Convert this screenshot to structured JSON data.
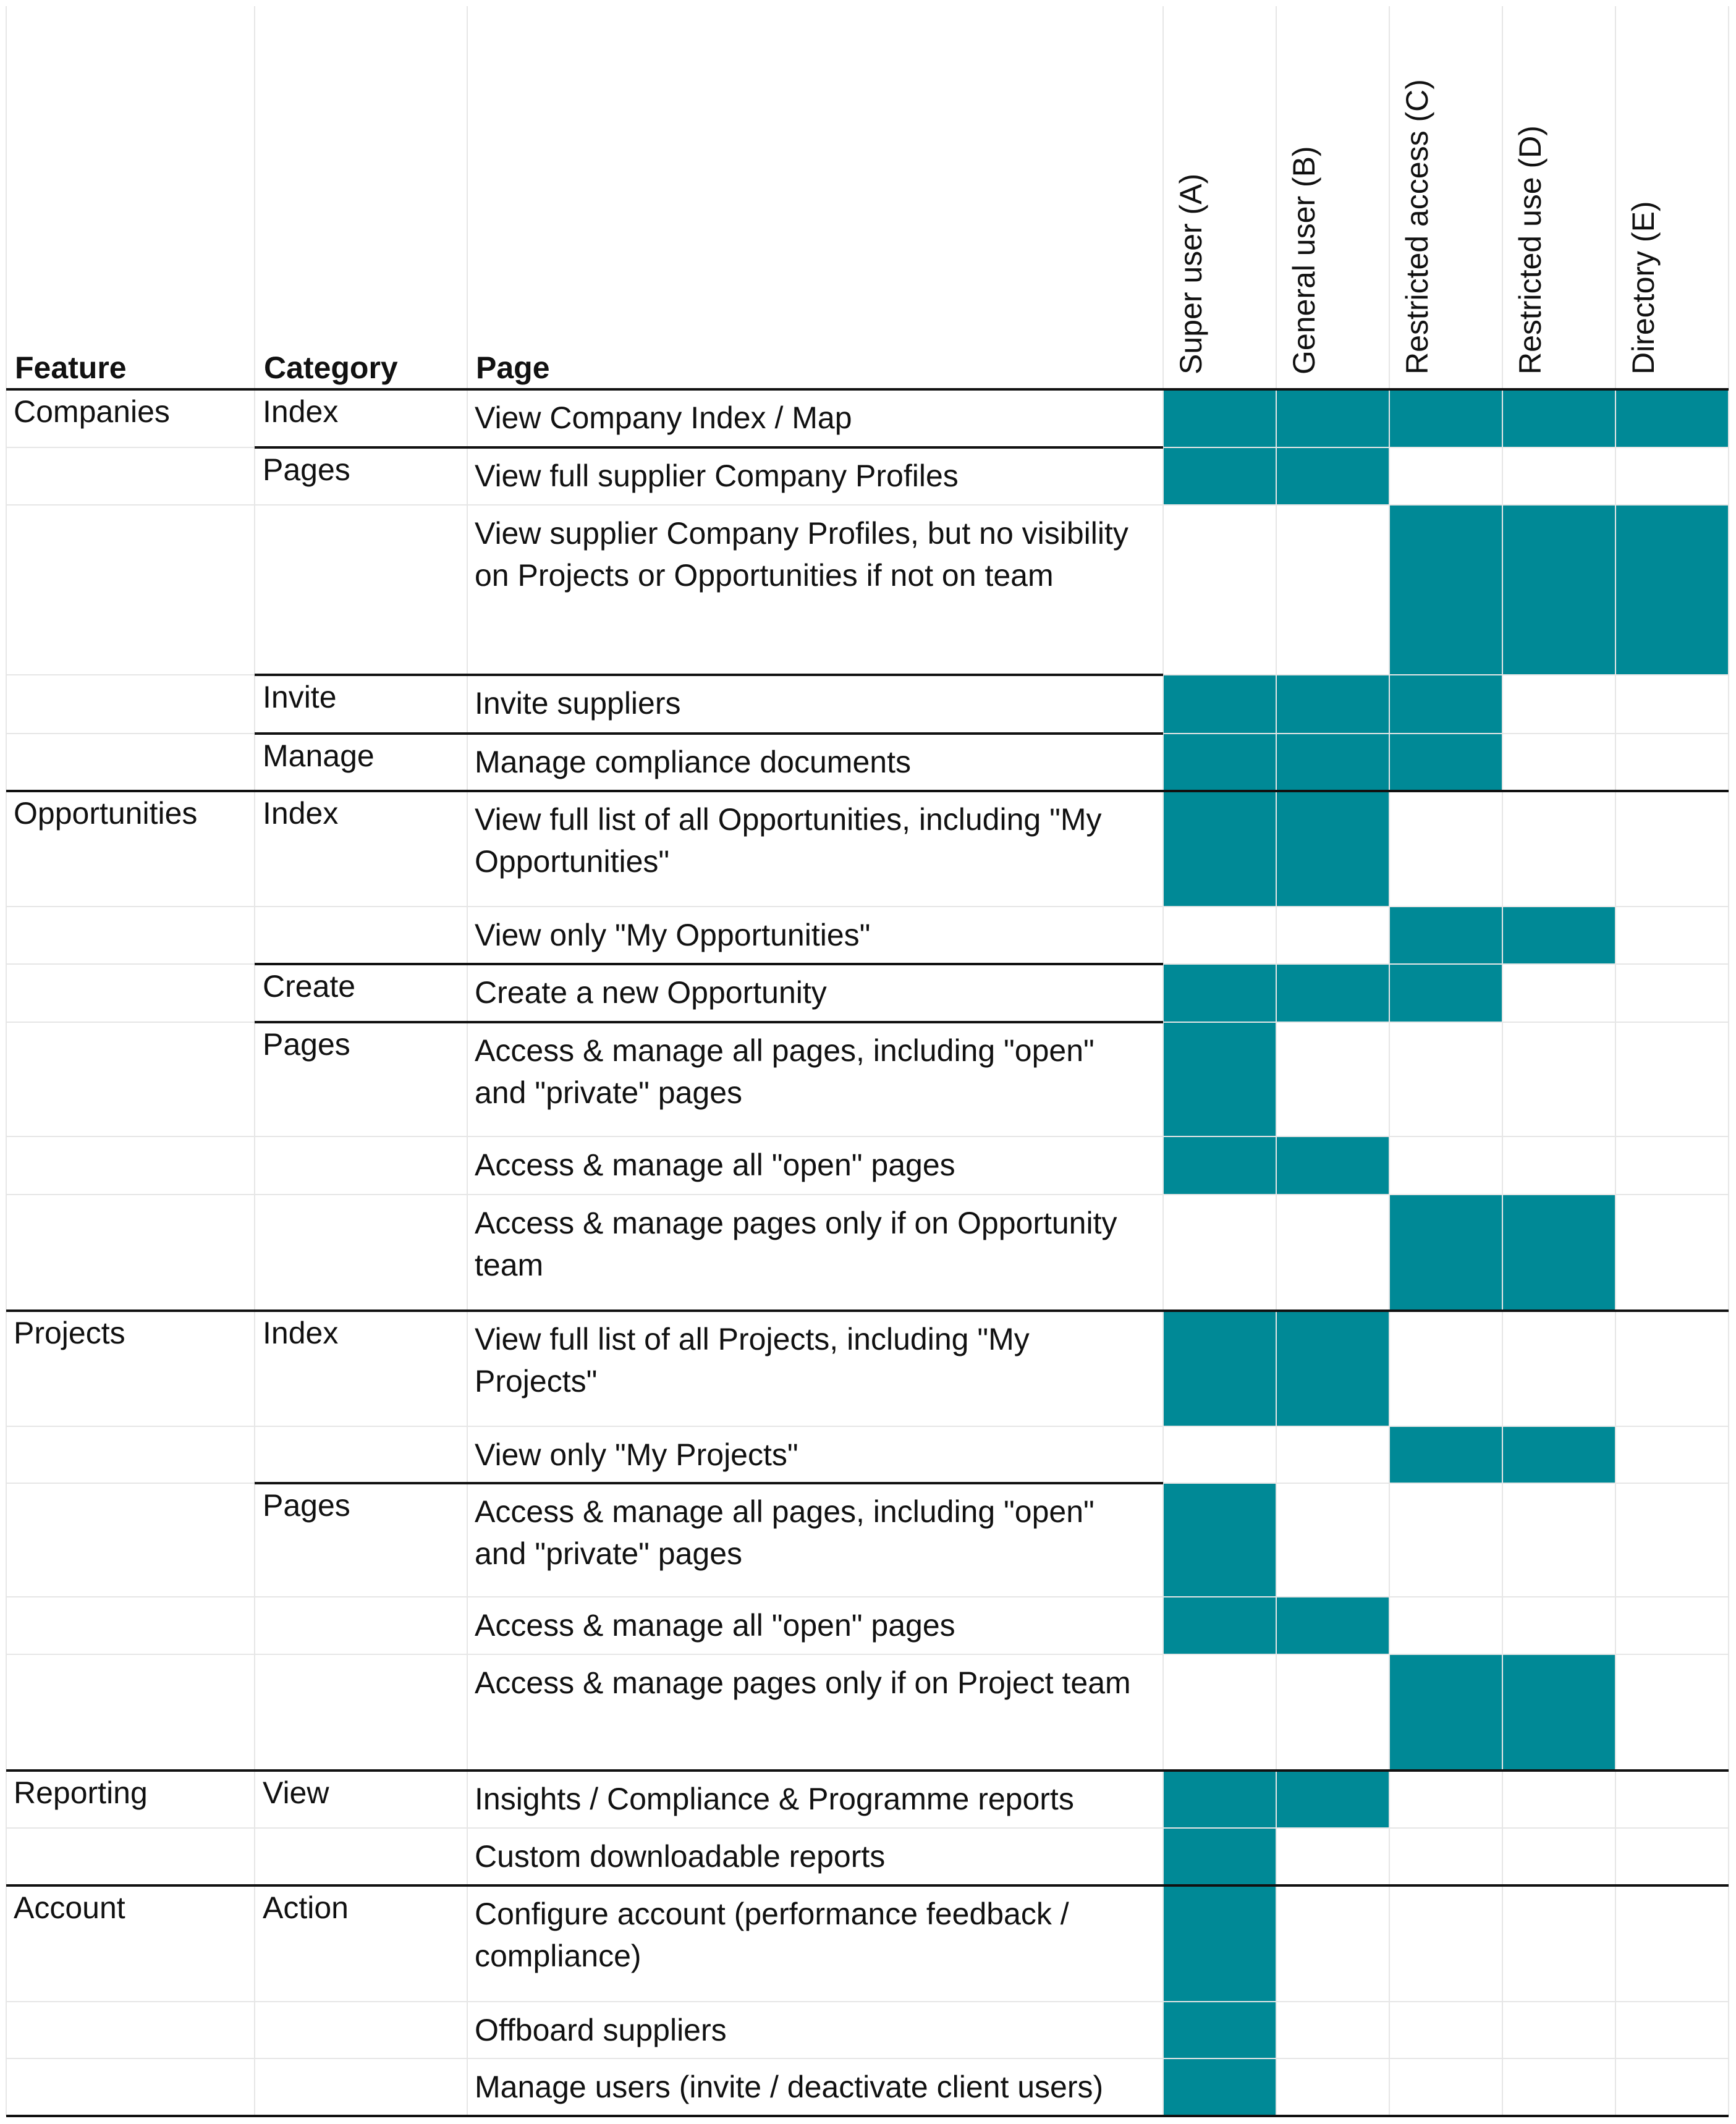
{
  "colors": {
    "filled": "#008996",
    "grid": "#e6e6e6",
    "rule": "#111111"
  },
  "headers": {
    "feature": "Feature",
    "category": "Category",
    "page": "Page",
    "roles": [
      "Super user (A)",
      "General user (B)",
      "Restricted access (C)",
      "Restricted use (D)",
      "Directory (E)"
    ]
  },
  "rows": [
    {
      "feature": "Companies",
      "category": "Index",
      "page": "View Company Index / Map",
      "access": [
        1,
        1,
        1,
        1,
        1
      ]
    },
    {
      "feature": "",
      "category": "Pages",
      "page": "View full supplier Company Profiles",
      "access": [
        1,
        1,
        0,
        0,
        0
      ]
    },
    {
      "feature": "",
      "category": "",
      "page": "View supplier Company Profiles, but no visibility on Projects or Opportunities if not on team",
      "access": [
        0,
        0,
        1,
        1,
        1
      ]
    },
    {
      "feature": "",
      "category": "Invite",
      "page": "Invite suppliers",
      "access": [
        1,
        1,
        1,
        0,
        0
      ]
    },
    {
      "feature": "",
      "category": "Manage",
      "page": "Manage compliance documents",
      "access": [
        1,
        1,
        1,
        0,
        0
      ]
    },
    {
      "feature": "Opportunities",
      "category": "Index",
      "page": "View full list of all Opportunities, including \"My Opportunities\"",
      "access": [
        1,
        1,
        0,
        0,
        0
      ]
    },
    {
      "feature": "",
      "category": "",
      "page": "View only \"My Opportunities\"",
      "access": [
        0,
        0,
        1,
        1,
        0
      ]
    },
    {
      "feature": "",
      "category": "Create",
      "page": "Create a new Opportunity",
      "access": [
        1,
        1,
        1,
        0,
        0
      ]
    },
    {
      "feature": "",
      "category": "Pages",
      "page": "Access & manage all pages, including \"open\" and \"private\" pages",
      "access": [
        1,
        0,
        0,
        0,
        0
      ]
    },
    {
      "feature": "",
      "category": "",
      "page": "Access & manage all \"open\" pages",
      "access": [
        1,
        1,
        0,
        0,
        0
      ]
    },
    {
      "feature": "",
      "category": "",
      "page": "Access & manage pages only if on Opportunity team",
      "access": [
        0,
        0,
        1,
        1,
        0
      ]
    },
    {
      "feature": "Projects",
      "category": "Index",
      "page": "View full list of all Projects, including \"My Projects\"",
      "access": [
        1,
        1,
        0,
        0,
        0
      ]
    },
    {
      "feature": "",
      "category": "",
      "page": "View only \"My Projects\"",
      "access": [
        0,
        0,
        1,
        1,
        0
      ]
    },
    {
      "feature": "",
      "category": "Pages",
      "page": "Access & manage all pages, including \"open\" and \"private\" pages",
      "access": [
        1,
        0,
        0,
        0,
        0
      ]
    },
    {
      "feature": "",
      "category": "",
      "page": "Access & manage all \"open\" pages",
      "access": [
        1,
        1,
        0,
        0,
        0
      ]
    },
    {
      "feature": "",
      "category": "",
      "page": "Access & manage pages only if on Project team",
      "access": [
        0,
        0,
        1,
        1,
        0
      ]
    },
    {
      "feature": "Reporting",
      "category": "View",
      "page": "Insights / Compliance & Programme reports",
      "access": [
        1,
        1,
        0,
        0,
        0
      ]
    },
    {
      "feature": "",
      "category": "",
      "page": "Custom downloadable reports",
      "access": [
        1,
        0,
        0,
        0,
        0
      ]
    },
    {
      "feature": "Account",
      "category": "Action",
      "page": "Configure account (performance feedback / compliance)",
      "access": [
        1,
        0,
        0,
        0,
        0
      ]
    },
    {
      "feature": "",
      "category": "",
      "page": "Offboard suppliers",
      "access": [
        1,
        0,
        0,
        0,
        0
      ]
    },
    {
      "feature": "",
      "category": "",
      "page": "Manage users (invite / deactivate client users)",
      "access": [
        1,
        0,
        0,
        0,
        0
      ]
    }
  ]
}
